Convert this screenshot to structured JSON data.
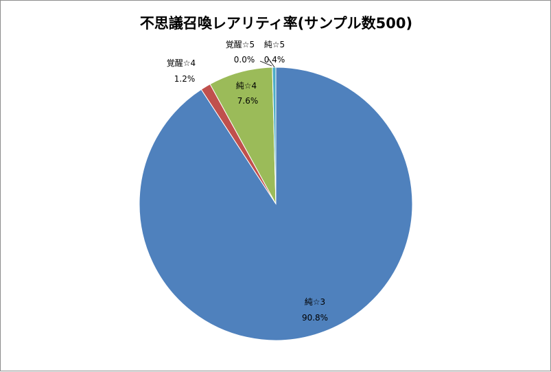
{
  "chart_data": {
    "type": "pie",
    "title": "不思議召喚レアリティ率(サンプル数500)",
    "slices": [
      {
        "name": "純☆3",
        "value": 90.8,
        "label": "90.8%",
        "color": "#4f81bd"
      },
      {
        "name": "覚醒☆4",
        "value": 1.2,
        "label": "1.2%",
        "color": "#c0504d"
      },
      {
        "name": "純☆4",
        "value": 7.6,
        "label": "7.6%",
        "color": "#9bbb59"
      },
      {
        "name": "覚醒☆5",
        "value": 0.0,
        "label": "0.0%",
        "color": "#8064a2"
      },
      {
        "name": "純☆5",
        "value": 0.4,
        "label": "0.4%",
        "color": "#4bacc6"
      }
    ],
    "legend": "none",
    "data_labels": "category-and-percent"
  }
}
